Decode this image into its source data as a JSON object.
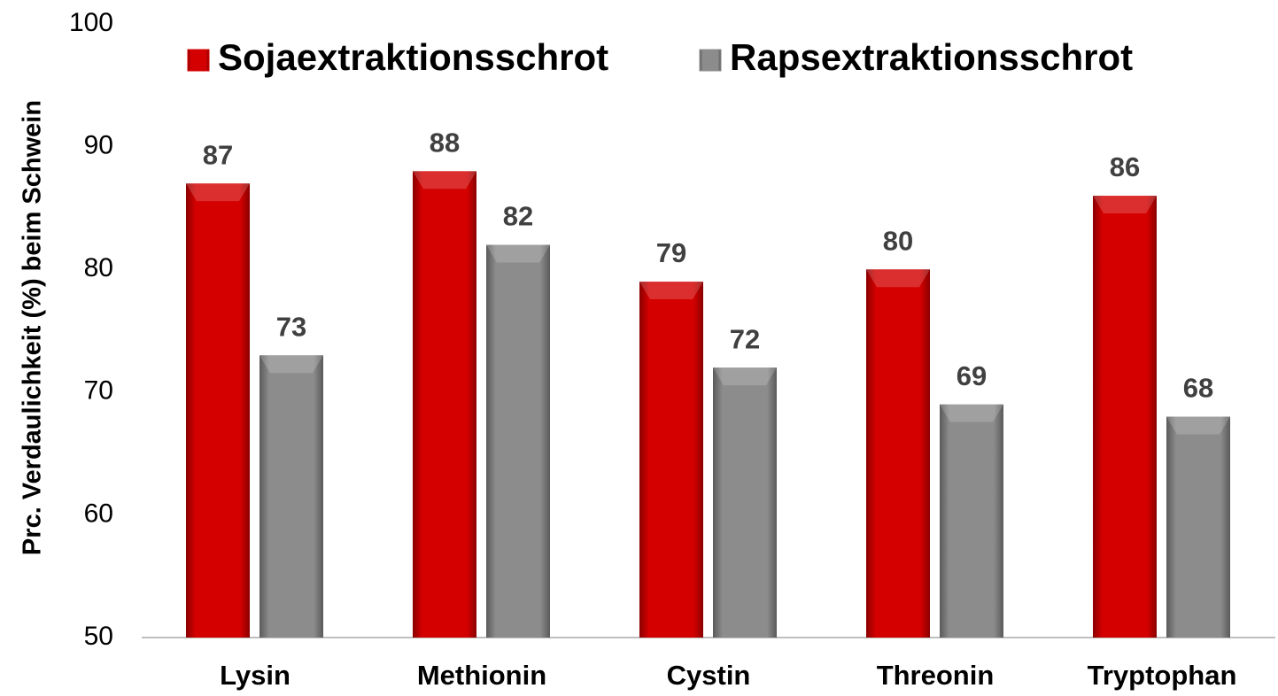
{
  "chart_data": {
    "type": "bar",
    "y_axis_label": "Prc. Verdaulichkeit (%) beim Schwein",
    "categories": [
      "Lysin",
      "Methionin",
      "Cystin",
      "Threonin",
      "Tryptophan"
    ],
    "series": [
      {
        "name": "Sojaextraktionsschrot",
        "color": "#d40000",
        "values": [
          87,
          88,
          79,
          80,
          86
        ]
      },
      {
        "name": "Rapsextraktionsschrot",
        "color": "#8c8c8c",
        "values": [
          73,
          82,
          72,
          69,
          68
        ]
      }
    ],
    "ylim": [
      50,
      100
    ],
    "yticks": [
      50,
      60,
      70,
      80,
      90,
      100
    ],
    "grid": false,
    "legend": "top"
  }
}
